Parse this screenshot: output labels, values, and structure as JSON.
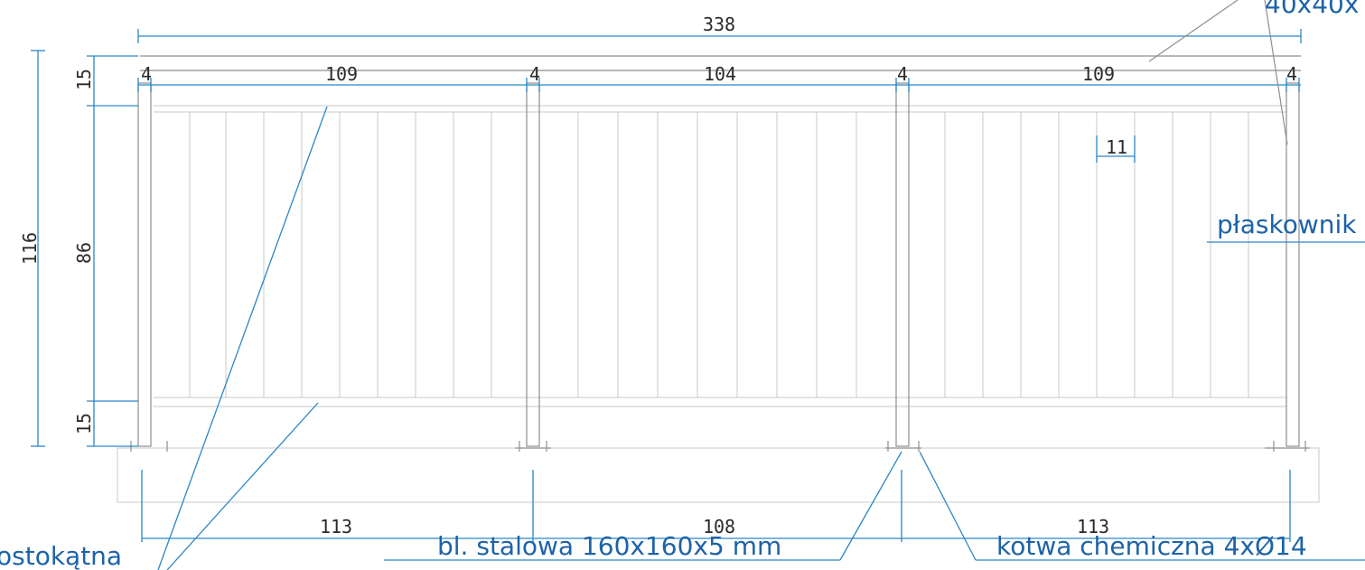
{
  "colors": {
    "dimension_line": "#2a86c6",
    "callout_text": "#1d63a8",
    "structure": "#8e8e8e",
    "dimension_text": "#2a2a2a"
  },
  "drawing": {
    "dims": {
      "overall_length": "338",
      "post_width": "4",
      "bay_left": "109",
      "bay_middle": "104",
      "bay_right": "109",
      "baluster_spacing": "11",
      "total_height": "116",
      "top_rail_height": "15",
      "infill_height": "86",
      "bottom_rail_height": "15",
      "base_left": "113",
      "base_middle": "108",
      "base_right": "113"
    },
    "labels": {
      "top_right_partial": "40x40x",
      "flat_bar_partial": "płaskownik",
      "diagonal_partial": "ostokątna",
      "steel_plate": "bl. stalowa 160x160x5 mm",
      "chemical_anchor": "kotwa chemiczna 4xØ14"
    }
  }
}
